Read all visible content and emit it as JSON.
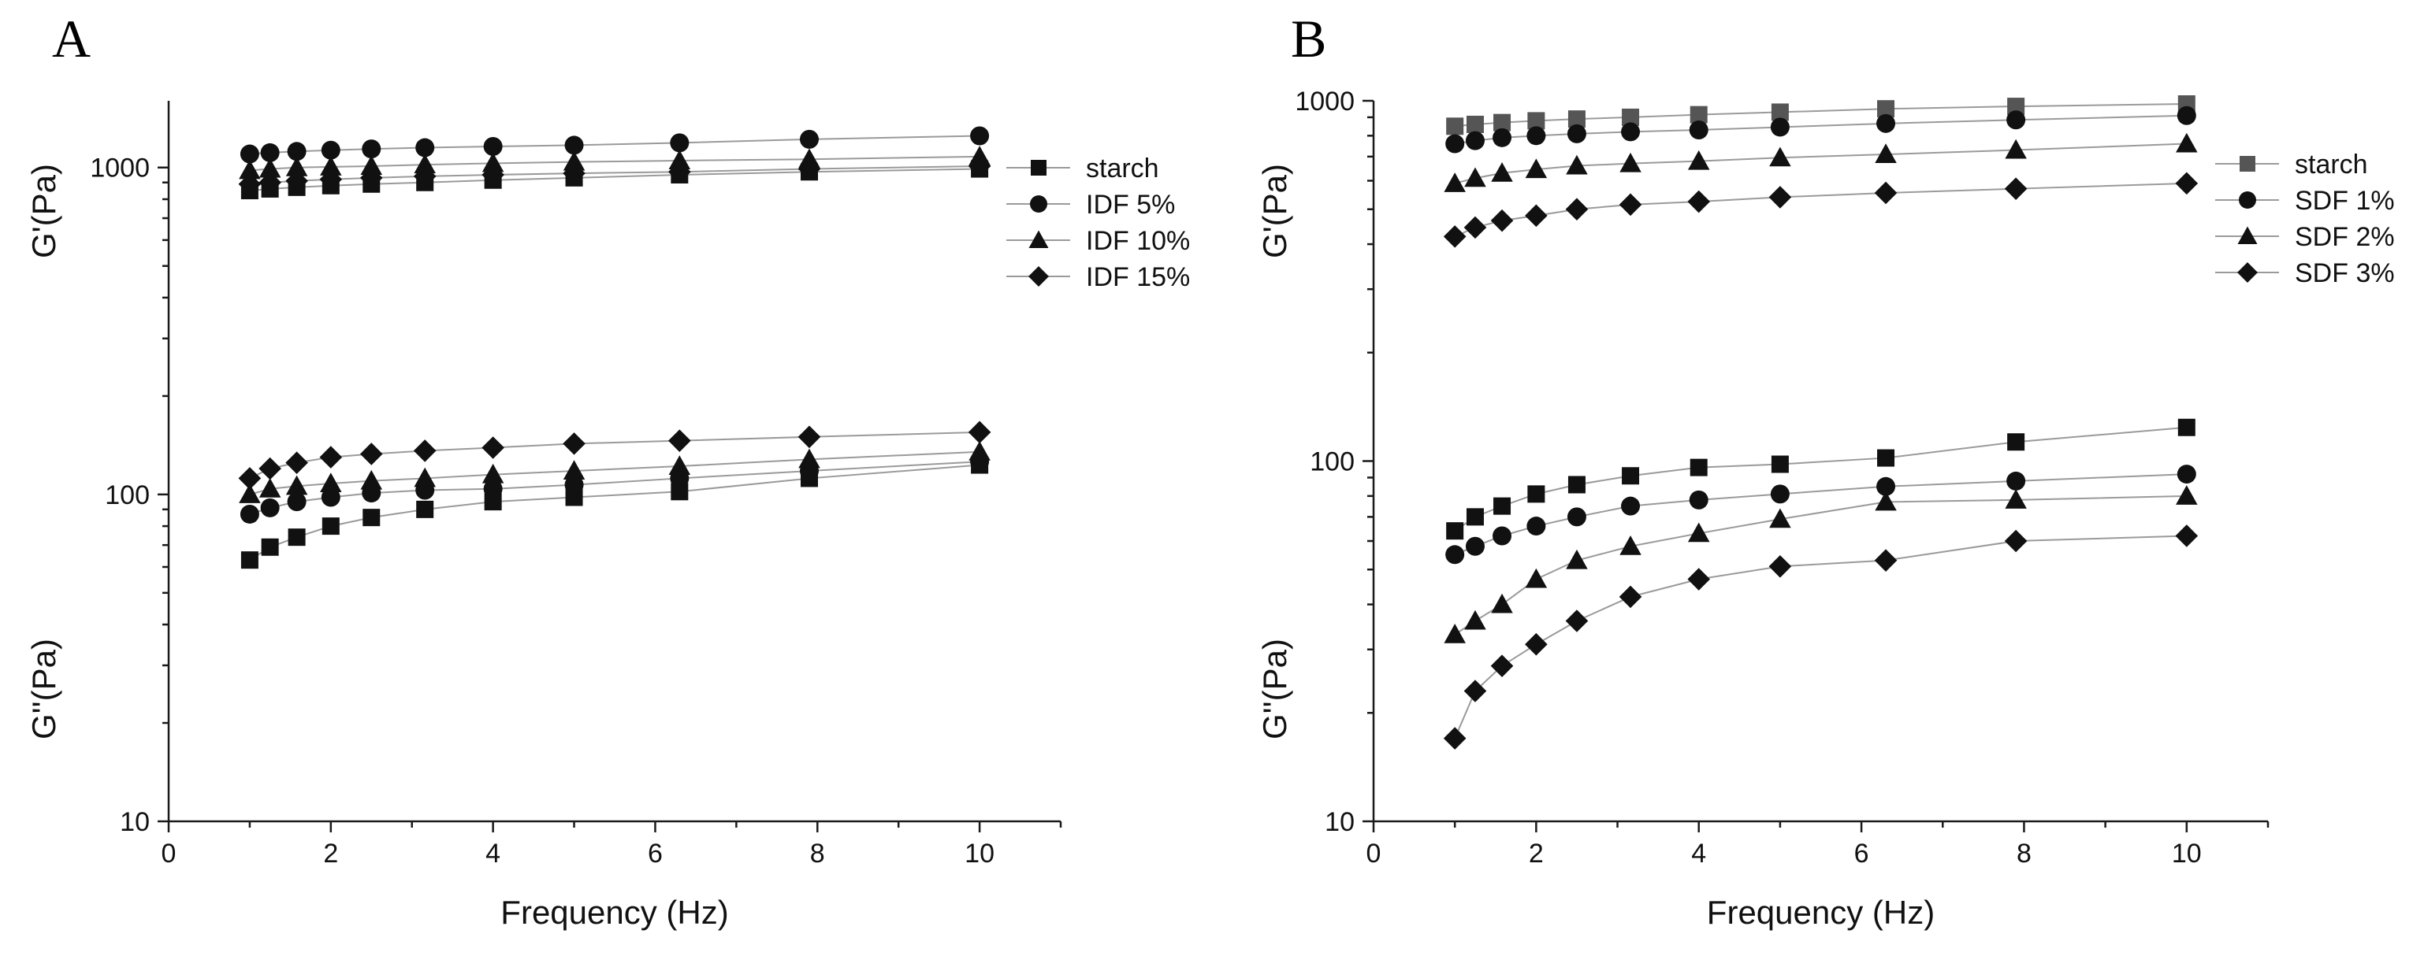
{
  "chart_data": [
    {
      "panel_label": "A",
      "type": "line",
      "scale": "log-y",
      "xlabel": "Frequency (Hz)",
      "ylabel_top": "G'(Pa)",
      "ylabel_bottom": "G''(Pa)",
      "xlim": [
        0,
        11
      ],
      "ylim": [
        10,
        1600
      ],
      "x_ticks": [
        0,
        2,
        4,
        6,
        8,
        10
      ],
      "y_ticks": [
        10,
        100,
        1000
      ],
      "x_tick_labels": [
        "0",
        "2",
        "4",
        "6",
        "8",
        "10"
      ],
      "y_tick_labels": [
        "10",
        "100",
        "1000"
      ],
      "legend": {
        "placement": "top-right",
        "entries": [
          {
            "name": "starch",
            "marker": "square"
          },
          {
            "name": "IDF 5%",
            "marker": "circle"
          },
          {
            "name": "IDF 10%",
            "marker": "triangle"
          },
          {
            "name": "IDF 15%",
            "marker": "diamond"
          }
        ]
      },
      "x": [
        1,
        1.25,
        1.58,
        2,
        2.5,
        3.16,
        4,
        5,
        6.3,
        7.9,
        10
      ],
      "series": [
        {
          "name": "starch",
          "modulus": "G'",
          "marker": "square",
          "color": "#111111",
          "values": [
            850,
            860,
            870,
            880,
            890,
            900,
            915,
            930,
            950,
            970,
            990
          ]
        },
        {
          "name": "IDF 5%",
          "modulus": "G'",
          "marker": "circle",
          "color": "#111111",
          "values": [
            1100,
            1110,
            1120,
            1130,
            1140,
            1150,
            1160,
            1170,
            1190,
            1220,
            1250
          ]
        },
        {
          "name": "IDF 10%",
          "modulus": "G'",
          "marker": "triangle",
          "color": "#111111",
          "values": [
            980,
            990,
            1000,
            1005,
            1010,
            1020,
            1030,
            1040,
            1050,
            1060,
            1080
          ]
        },
        {
          "name": "IDF 15%",
          "modulus": "G'",
          "marker": "diamond",
          "color": "#111111",
          "values": [
            890,
            900,
            910,
            920,
            930,
            940,
            950,
            960,
            970,
            990,
            1010
          ]
        },
        {
          "name": "starch",
          "modulus": "G''",
          "marker": "square",
          "color": "#111111",
          "values": [
            63,
            69,
            74,
            80,
            85,
            90,
            95,
            98,
            102,
            112,
            123
          ]
        },
        {
          "name": "IDF 5%",
          "modulus": "G''",
          "marker": "circle",
          "color": "#111111",
          "values": [
            87,
            91,
            95,
            98,
            101,
            103,
            104,
            107,
            112,
            118,
            126
          ]
        },
        {
          "name": "IDF 10%",
          "modulus": "G''",
          "marker": "triangle",
          "color": "#111111",
          "values": [
            100,
            104,
            106,
            108,
            110,
            112,
            115,
            118,
            122,
            128,
            135
          ]
        },
        {
          "name": "IDF 15%",
          "modulus": "G''",
          "marker": "diamond",
          "color": "#111111",
          "values": [
            112,
            120,
            125,
            130,
            133,
            136,
            139,
            143,
            146,
            150,
            155
          ]
        }
      ]
    },
    {
      "panel_label": "B",
      "type": "line",
      "scale": "log-y",
      "xlabel": "Frequency (Hz)",
      "ylabel_top": "G'(Pa)",
      "ylabel_bottom": "G''(Pa)",
      "xlim": [
        0,
        11
      ],
      "ylim": [
        10,
        1000
      ],
      "x_ticks": [
        0,
        2,
        4,
        6,
        8,
        10
      ],
      "y_ticks": [
        10,
        100,
        1000
      ],
      "x_tick_labels": [
        "0",
        "2",
        "4",
        "6",
        "8",
        "10"
      ],
      "y_tick_labels": [
        "10",
        "100",
        "1000"
      ],
      "legend": {
        "placement": "top-right",
        "entries": [
          {
            "name": "starch",
            "marker": "square",
            "color": "#555555"
          },
          {
            "name": "SDF 1%",
            "marker": "circle"
          },
          {
            "name": "SDF 2%",
            "marker": "triangle"
          },
          {
            "name": "SDF 3%",
            "marker": "diamond"
          }
        ]
      },
      "x": [
        1,
        1.25,
        1.58,
        2,
        2.5,
        3.16,
        4,
        5,
        6.3,
        7.9,
        10
      ],
      "series": [
        {
          "name": "starch",
          "modulus": "G'",
          "marker": "square",
          "color": "#555555",
          "values": [
            850,
            860,
            870,
            880,
            890,
            900,
            915,
            930,
            950,
            965,
            980
          ]
        },
        {
          "name": "SDF 1%",
          "modulus": "G'",
          "marker": "circle",
          "color": "#111111",
          "values": [
            760,
            775,
            790,
            800,
            810,
            820,
            830,
            845,
            865,
            885,
            910
          ]
        },
        {
          "name": "SDF 2%",
          "modulus": "G'",
          "marker": "triangle",
          "color": "#111111",
          "values": [
            590,
            610,
            630,
            645,
            660,
            670,
            680,
            695,
            710,
            730,
            760
          ]
        },
        {
          "name": "SDF 3%",
          "modulus": "G'",
          "marker": "diamond",
          "color": "#111111",
          "values": [
            420,
            445,
            465,
            480,
            500,
            515,
            525,
            540,
            555,
            570,
            590
          ]
        },
        {
          "name": "starch",
          "modulus": "G''",
          "marker": "square",
          "color": "#111111",
          "values": [
            64,
            70,
            75,
            81,
            86,
            91,
            96,
            98,
            102,
            113,
            124
          ]
        },
        {
          "name": "SDF 1%",
          "modulus": "G''",
          "marker": "circle",
          "color": "#111111",
          "values": [
            55,
            58,
            62,
            66,
            70,
            75,
            78,
            81,
            85,
            88,
            92
          ]
        },
        {
          "name": "SDF 2%",
          "modulus": "G''",
          "marker": "triangle",
          "color": "#111111",
          "values": [
            33,
            36,
            40,
            47,
            53,
            58,
            63,
            69,
            77,
            78,
            80
          ]
        },
        {
          "name": "SDF 3%",
          "modulus": "G''",
          "marker": "diamond",
          "color": "#111111",
          "values": [
            17,
            23,
            27,
            31,
            36,
            42,
            47,
            51,
            53,
            60,
            62
          ]
        }
      ]
    }
  ]
}
